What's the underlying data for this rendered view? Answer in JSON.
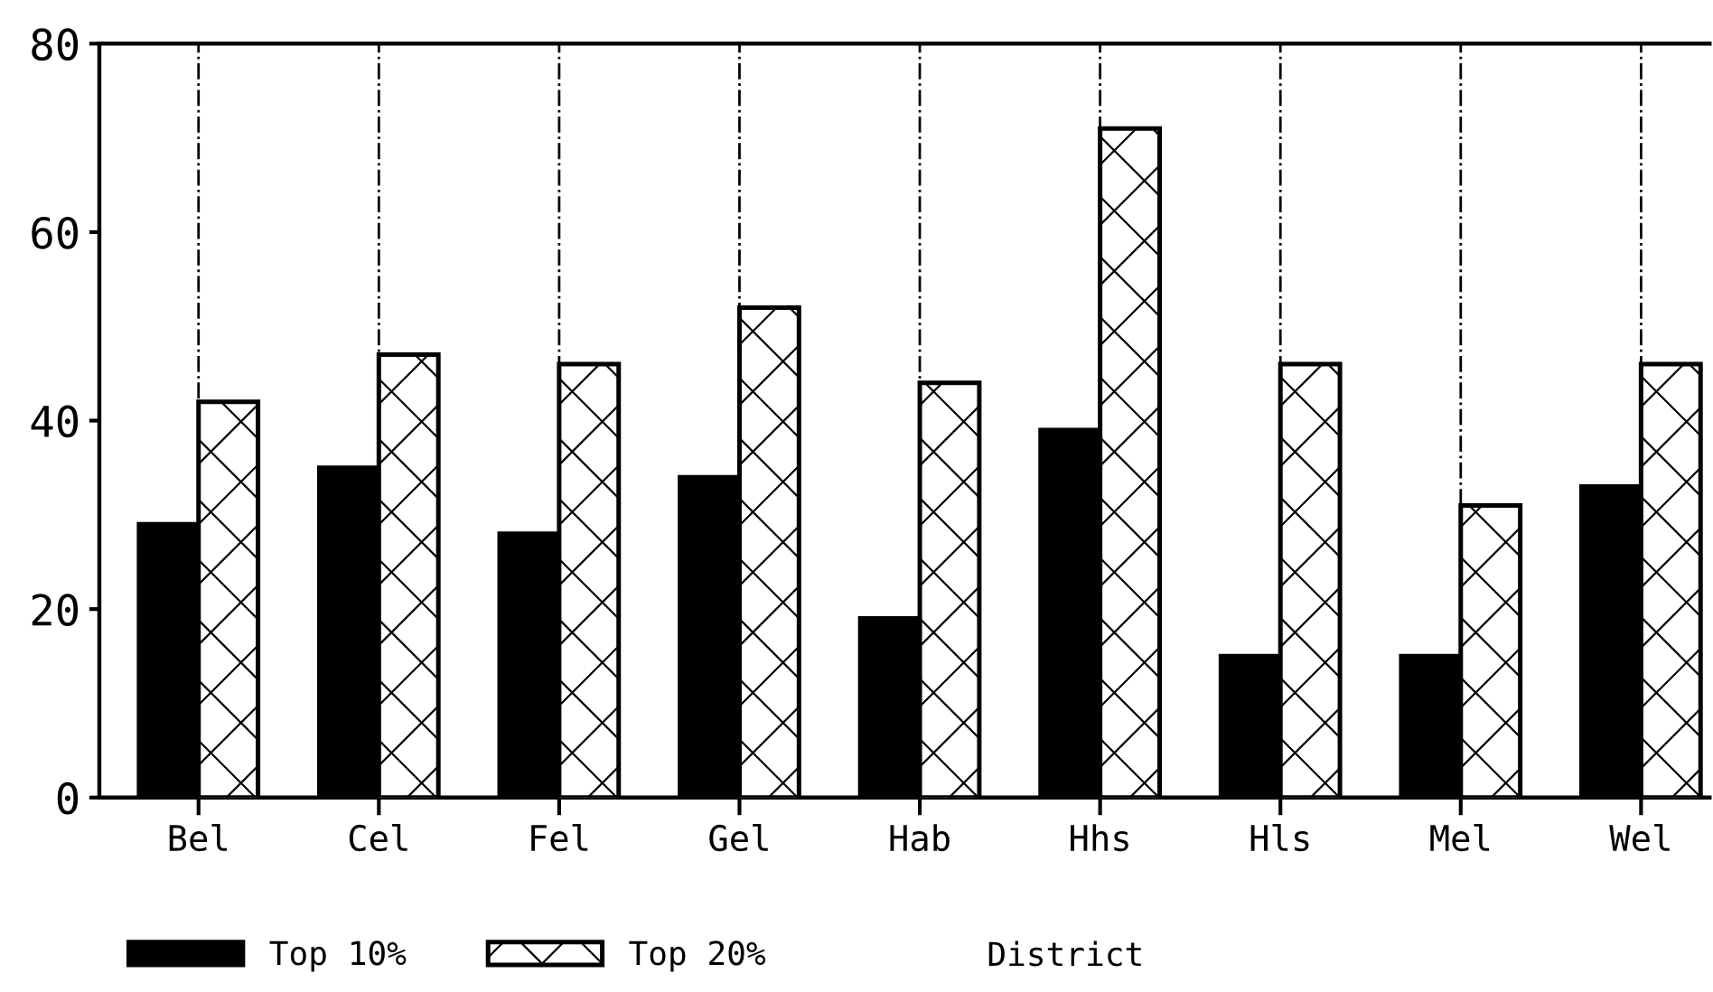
{
  "chart_data": {
    "type": "bar",
    "xlabel": "District",
    "categories": [
      "Bel",
      "Cel",
      "Fel",
      "Gel",
      "Hab",
      "Hhs",
      "Hls",
      "Mel",
      "Wel"
    ],
    "series": [
      {
        "name": "Top 10%",
        "color": "#000000",
        "values": [
          29,
          35,
          28,
          34,
          19,
          39,
          15,
          15,
          33
        ]
      },
      {
        "name": "Top 20%",
        "color": "#ffffff",
        "values": [
          42,
          47,
          46,
          52,
          44,
          71,
          46,
          31,
          46
        ]
      }
    ],
    "ylim": [
      0,
      80
    ],
    "yticks": [
      0,
      20,
      40,
      60,
      80
    ],
    "grid": "x",
    "legend": "bottom left"
  }
}
